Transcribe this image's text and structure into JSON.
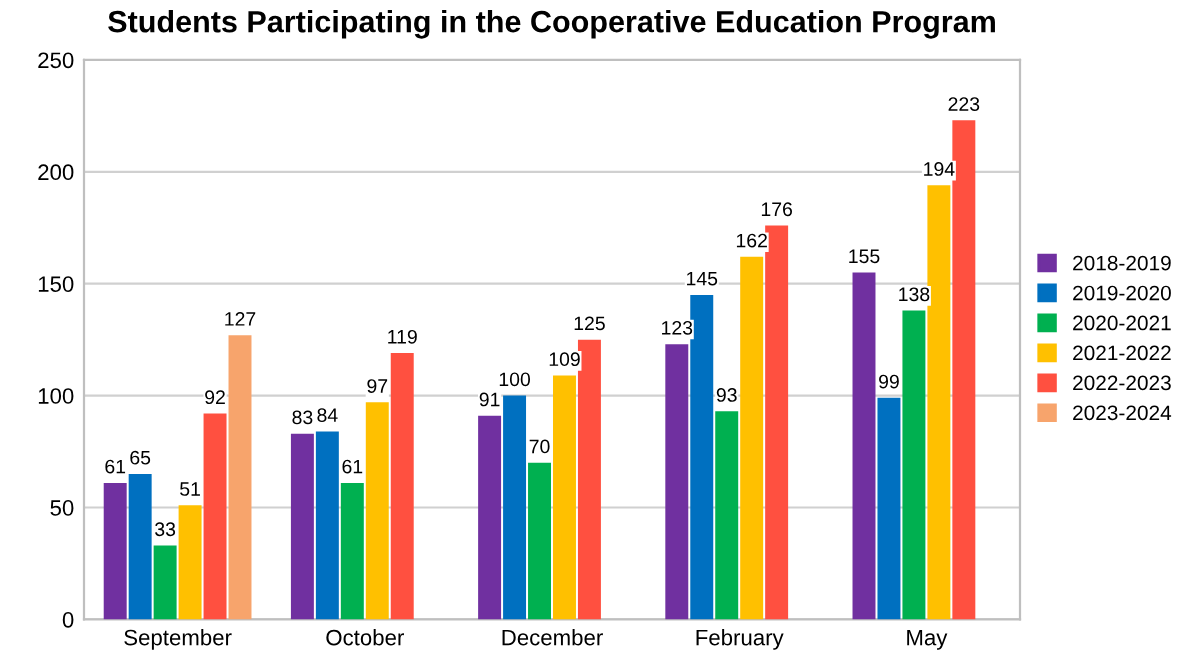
{
  "chart_data": {
    "type": "bar",
    "title": "Students Participating in the Cooperative Education Program",
    "categories": [
      "September",
      "October",
      "December",
      "February",
      "May"
    ],
    "series": [
      {
        "name": "2018-2019",
        "color": "#7030a0",
        "values": [
          61,
          83,
          91,
          123,
          155
        ]
      },
      {
        "name": "2019-2020",
        "color": "#0070c0",
        "values": [
          65,
          84,
          100,
          145,
          99
        ]
      },
      {
        "name": "2020-2021",
        "color": "#00b050",
        "values": [
          33,
          61,
          70,
          93,
          138
        ]
      },
      {
        "name": "2021-2022",
        "color": "#ffc000",
        "values": [
          51,
          97,
          109,
          162,
          194
        ]
      },
      {
        "name": "2022-2023",
        "color": "#ff5040",
        "values": [
          92,
          119,
          125,
          176,
          223
        ]
      },
      {
        "name": "2023-2024",
        "color": "#f7a46c",
        "values": [
          127,
          null,
          null,
          null,
          null
        ]
      }
    ],
    "ylim": [
      0,
      250
    ],
    "yticks": [
      0,
      50,
      100,
      150,
      200,
      250
    ],
    "grid": "y",
    "legend": "right",
    "data_labels": true
  }
}
